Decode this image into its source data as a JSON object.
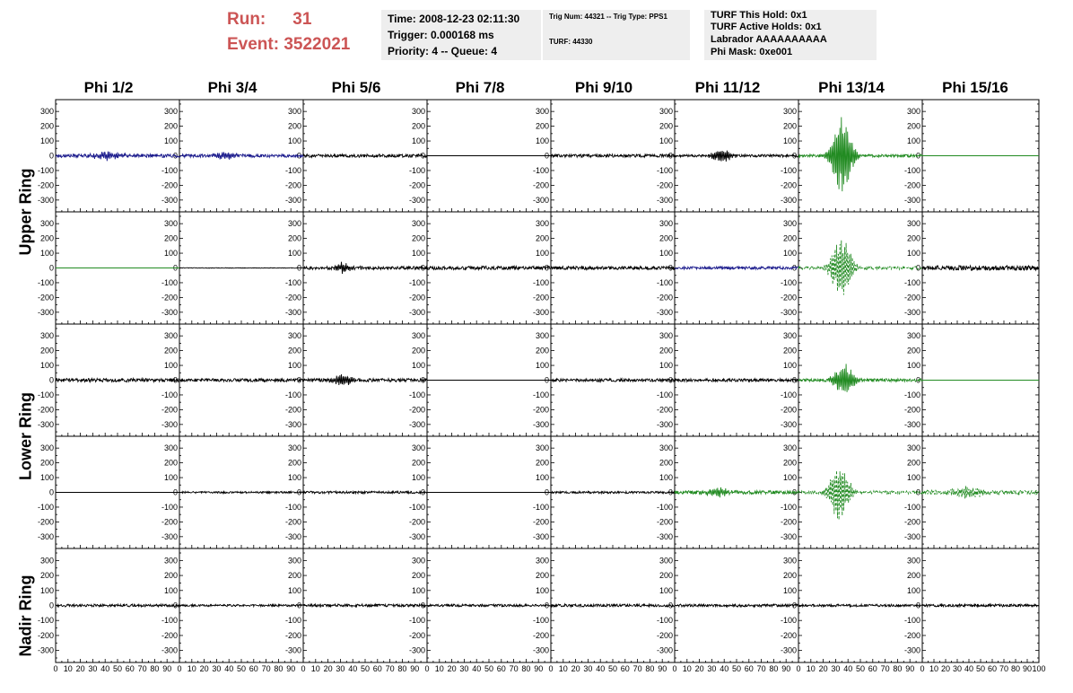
{
  "header": {
    "run_label": "Run:",
    "run_value": "31",
    "event_label": "Event:",
    "event_value": "3522021",
    "time_line": "Time: 2008-12-23 02:11:30",
    "trigger_line": "Trigger: 0.000168 ms",
    "priority_line": "Priority: 4 -- Queue: 4",
    "trig_line": "Trig Num: 44321 -- Trig Type: PPS1",
    "turf_line": "TURF: 44330",
    "turf_hold_line": "TURF This Hold: 0x1",
    "turf_active_line": "TURF Active Holds: 0x1",
    "labrador_line": "Labrador AAAAAAAAAA",
    "phi_mask_line": "Phi Mask: 0xe001",
    "accent_color": "#cc5555",
    "box_color": "#eeeeee"
  },
  "columns": [
    "Phi 1/2",
    "Phi 3/4",
    "Phi 5/6",
    "Phi 7/8",
    "Phi 9/10",
    "Phi 11/12",
    "Phi 13/14",
    "Phi 15/16"
  ],
  "rings": [
    "Upper Ring",
    "Lower Ring",
    "Nadir Ring"
  ],
  "chart_data": {
    "type": "line",
    "layout": "grid of 5 rows x 8 columns of waveform panels",
    "rows": 5,
    "columns": 8,
    "ylim": [
      -380,
      380
    ],
    "yticks": [
      -300,
      -200,
      -100,
      0,
      100,
      200,
      300
    ],
    "xlim": [
      0,
      100
    ],
    "xticks": [
      0,
      10,
      20,
      30,
      40,
      50,
      60,
      70,
      80,
      90,
      100
    ],
    "xticklabels": [
      "0",
      "10",
      "20",
      "30",
      "40",
      "50",
      "60",
      "70",
      "80",
      "90",
      "100"
    ],
    "colors": {
      "black": "#000000",
      "blue": "#1a1a8c",
      "green": "#228b22"
    },
    "panels": [
      {
        "row": 0,
        "col": 0,
        "color": "blue",
        "style": "solid",
        "noise": 12,
        "burst": {
          "center": 42,
          "amp": 30,
          "width": 8
        }
      },
      {
        "row": 0,
        "col": 1,
        "color": "blue",
        "style": "solid",
        "noise": 11,
        "burst": {
          "center": 38,
          "amp": 30,
          "width": 6
        }
      },
      {
        "row": 0,
        "col": 2,
        "color": "black",
        "style": "solid",
        "noise": 11,
        "burst": null
      },
      {
        "row": 0,
        "col": 3,
        "color": "black",
        "style": "solid",
        "noise": 0,
        "burst": null
      },
      {
        "row": 0,
        "col": 4,
        "color": "black",
        "style": "solid",
        "noise": 10,
        "burst": null
      },
      {
        "row": 0,
        "col": 5,
        "color": "black",
        "style": "solid",
        "noise": 9,
        "burst": {
          "center": 38,
          "amp": 45,
          "width": 6
        }
      },
      {
        "row": 0,
        "col": 6,
        "color": "green",
        "style": "solid",
        "noise": 9,
        "burst": {
          "center": 35,
          "amp": 280,
          "width": 6
        }
      },
      {
        "row": 0,
        "col": 7,
        "color": "green",
        "style": "solid",
        "noise": 0,
        "burst": null
      },
      {
        "row": 1,
        "col": 0,
        "color": "green",
        "style": "solid",
        "noise": 0,
        "burst": null
      },
      {
        "row": 1,
        "col": 1,
        "color": "black",
        "style": "solid",
        "noise": 2,
        "burst": null
      },
      {
        "row": 1,
        "col": 2,
        "color": "black",
        "style": "solid",
        "noise": 11,
        "burst": {
          "center": 32,
          "amp": 35,
          "width": 5
        }
      },
      {
        "row": 1,
        "col": 3,
        "color": "black",
        "style": "solid",
        "noise": 12,
        "burst": null
      },
      {
        "row": 1,
        "col": 4,
        "color": "black",
        "style": "solid",
        "noise": 12,
        "burst": null
      },
      {
        "row": 1,
        "col": 5,
        "color": "blue",
        "style": "solid",
        "noise": 10,
        "burst": null
      },
      {
        "row": 1,
        "col": 6,
        "color": "green",
        "style": "dashed",
        "noise": 10,
        "burst": {
          "center": 35,
          "amp": 230,
          "width": 6
        }
      },
      {
        "row": 1,
        "col": 7,
        "color": "black",
        "style": "solid",
        "noise": 16,
        "burst": null
      },
      {
        "row": 2,
        "col": 0,
        "color": "black",
        "style": "solid",
        "noise": 12,
        "burst": null
      },
      {
        "row": 2,
        "col": 1,
        "color": "black",
        "style": "solid",
        "noise": 11,
        "burst": null
      },
      {
        "row": 2,
        "col": 2,
        "color": "black",
        "style": "solid",
        "noise": 11,
        "burst": {
          "center": 32,
          "amp": 35,
          "width": 6
        }
      },
      {
        "row": 2,
        "col": 3,
        "color": "black",
        "style": "solid",
        "noise": 0,
        "burst": null
      },
      {
        "row": 2,
        "col": 4,
        "color": "black",
        "style": "solid",
        "noise": 10,
        "burst": null
      },
      {
        "row": 2,
        "col": 5,
        "color": "black",
        "style": "solid",
        "noise": 10,
        "burst": null
      },
      {
        "row": 2,
        "col": 6,
        "color": "green",
        "style": "solid",
        "noise": 10,
        "burst": {
          "center": 37,
          "amp": 110,
          "width": 6
        }
      },
      {
        "row": 2,
        "col": 7,
        "color": "green",
        "style": "solid",
        "noise": 0,
        "burst": null
      },
      {
        "row": 3,
        "col": 0,
        "color": "black",
        "style": "solid",
        "noise": 0,
        "burst": null
      },
      {
        "row": 3,
        "col": 1,
        "color": "black",
        "style": "solid",
        "noise": 6,
        "burst": null
      },
      {
        "row": 3,
        "col": 2,
        "color": "black",
        "style": "solid",
        "noise": 8,
        "burst": null
      },
      {
        "row": 3,
        "col": 3,
        "color": "black",
        "style": "solid",
        "noise": 0,
        "burst": null
      },
      {
        "row": 3,
        "col": 4,
        "color": "black",
        "style": "solid",
        "noise": 7,
        "burst": null
      },
      {
        "row": 3,
        "col": 5,
        "color": "green",
        "style": "solid",
        "noise": 12,
        "burst": {
          "center": 35,
          "amp": 30,
          "width": 8
        }
      },
      {
        "row": 3,
        "col": 6,
        "color": "green",
        "style": "dashed",
        "noise": 10,
        "burst": {
          "center": 33,
          "amp": 210,
          "width": 6
        }
      },
      {
        "row": 3,
        "col": 7,
        "color": "green",
        "style": "dashed",
        "noise": 14,
        "burst": {
          "center": 40,
          "amp": 40,
          "width": 10
        }
      },
      {
        "row": 4,
        "col": 0,
        "color": "black",
        "style": "solid",
        "noise": 9,
        "burst": null
      },
      {
        "row": 4,
        "col": 1,
        "color": "black",
        "style": "solid",
        "noise": 7,
        "burst": null
      },
      {
        "row": 4,
        "col": 2,
        "color": "black",
        "style": "solid",
        "noise": 9,
        "burst": null
      },
      {
        "row": 4,
        "col": 3,
        "color": "black",
        "style": "solid",
        "noise": 8,
        "burst": null
      },
      {
        "row": 4,
        "col": 4,
        "color": "black",
        "style": "solid",
        "noise": 9,
        "burst": null
      },
      {
        "row": 4,
        "col": 5,
        "color": "black",
        "style": "solid",
        "noise": 9,
        "burst": null
      },
      {
        "row": 4,
        "col": 6,
        "color": "black",
        "style": "solid",
        "noise": 8,
        "burst": null
      },
      {
        "row": 4,
        "col": 7,
        "color": "black",
        "style": "solid",
        "noise": 9,
        "burst": null
      }
    ]
  }
}
